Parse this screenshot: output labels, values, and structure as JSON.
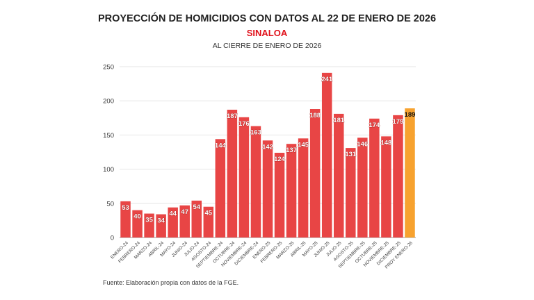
{
  "chart_data": {
    "type": "bar",
    "title": "PROYECCIÓN DE HOMICIDIOS CON DATOS AL 22 DE ENERO DE 2026",
    "subtitle": "SINALOA",
    "subtitle2": "AL CIERRE DE ENERO DE 2026",
    "categories": [
      "ENERO-24",
      "FEBRERO-24",
      "MARZO-24",
      "ABRIL-24",
      "MAYO-24",
      "JUNIO-24",
      "JULIO-24",
      "AGOSTO-24",
      "SEPTIEMBRE-24",
      "OCTUBRE-24",
      "NOVIEMBRE-24",
      "DICIEMBRE-24",
      "ENERO-25",
      "FEBRERO-25",
      "MARZO-25",
      "ABRIL-25",
      "MAYO-25",
      "JUNIO-25",
      "JULIO-25",
      "AGOSTO-25",
      "SEPTIEMBRE-25",
      "OCTUBRE-25",
      "NOVIEMBRE-25",
      "DICIEMBRE-25",
      "PROY ENERO-26"
    ],
    "values": [
      53,
      40,
      35,
      34,
      44,
      47,
      54,
      45,
      144,
      187,
      176,
      163,
      142,
      124,
      137,
      145,
      188,
      241,
      181,
      131,
      146,
      174,
      148,
      179,
      189
    ],
    "ylim": [
      0,
      250
    ],
    "yticks": [
      0,
      50,
      100,
      150,
      200,
      250
    ],
    "grid": true,
    "colors": {
      "bar": "#e84545",
      "projection": "#f7a22f"
    },
    "source": "Fuente: Elaboración propia con datos de la FGE."
  }
}
